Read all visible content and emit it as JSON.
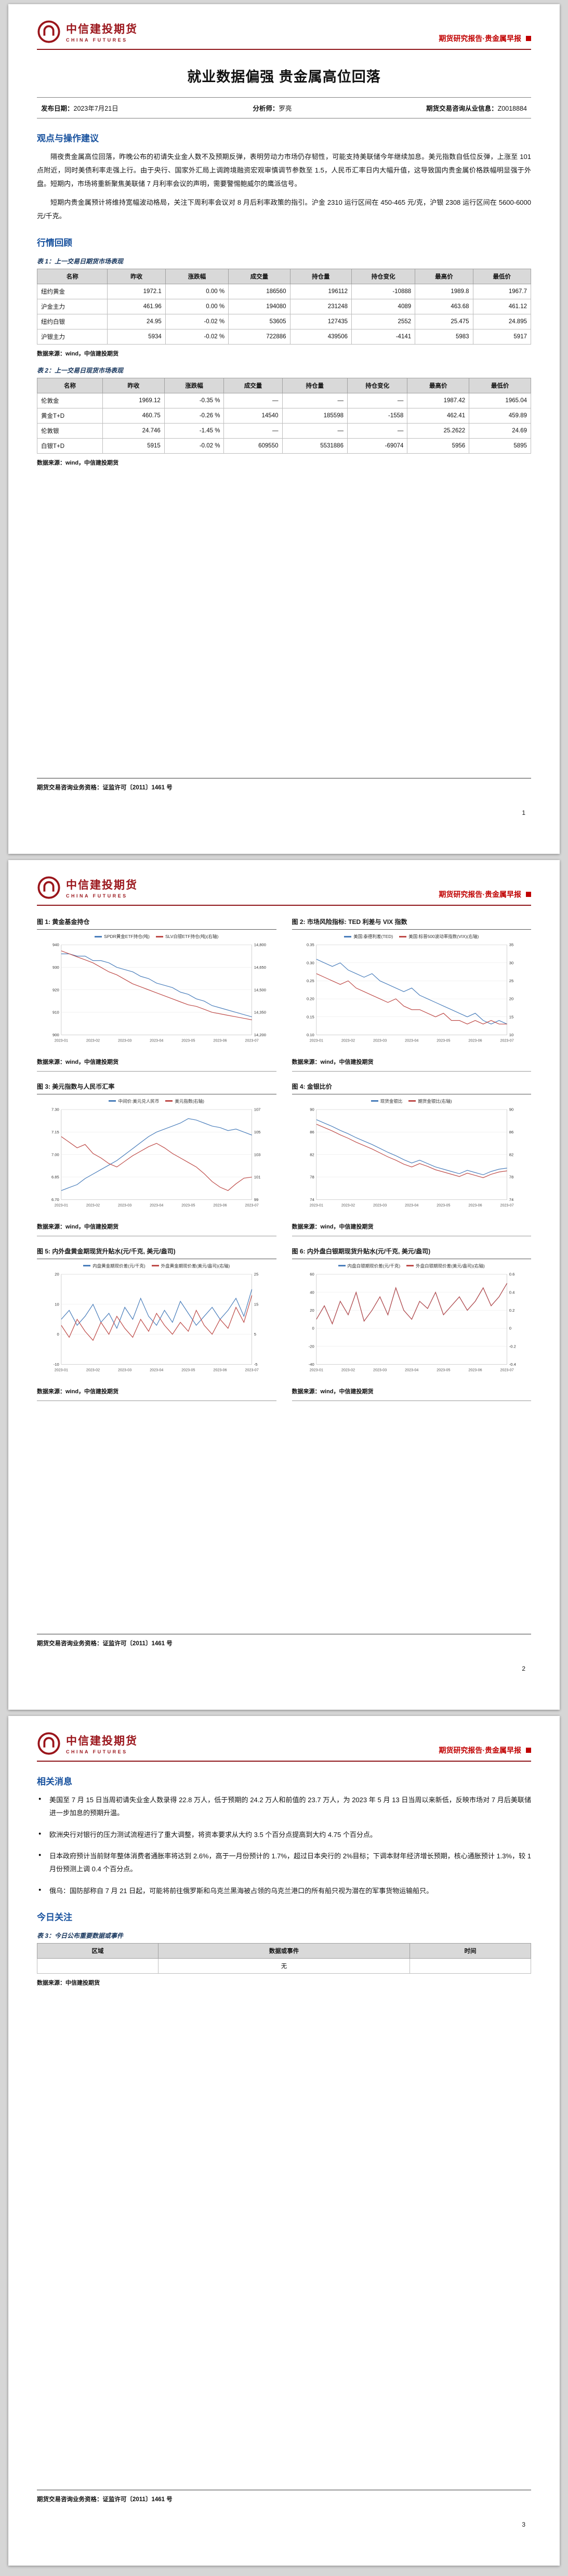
{
  "colors": {
    "brand_red": "#9a151b",
    "report_type_red": "#c00000",
    "heading_blue": "#17519e",
    "caption_navy": "#17365d",
    "table_header_bg": "#d9d9d9",
    "series_blue": "#4a7ebb",
    "series_red": "#be4b48"
  },
  "header": {
    "logo_cn": "中信建投期货",
    "logo_en": "CHINA FUTURES",
    "report_type": "期货研究报告·贵金属早报"
  },
  "footer": {
    "license": "期货交易咨询业务资格：证监许可〔2011〕1461 号"
  },
  "page1": {
    "page_no": "1",
    "title": "就业数据偏强 贵金属高位回落",
    "meta": {
      "publish_label": "发布日期：",
      "publish_date": "2023年7月21日",
      "analyst_label": "分析师：",
      "analyst": "罗亮",
      "license_label": "期货交易咨询从业信息：",
      "license_no": "Z0018884"
    },
    "section1_title": "观点与操作建议",
    "para1": "隔夜贵金属高位回落，昨晚公布的初请失业金人数不及预期反弹，表明劳动力市场仍存韧性，可能支持美联储今年继续加息。美元指数自低位反弹，上涨至 101 点附近，同时美债利率走强上行。由于央行、国家外汇局上调跨境融资宏观审慎调节参数至 1.5，人民币汇率日内大幅升值，这导致国内贵金属价格跌幅明显强于外盘。短期内，市场将重新聚焦美联储 7 月利率会议的声明，需要警惕鲍威尔的鹰派信号。",
    "para2": "短期内贵金属预计将维持宽幅波动格局，关注下周利率会议对 8 月后利率政策的指引。沪金 2310 运行区间在 450-465 元/克，沪银 2308 运行区间在 5600-6000 元/千克。",
    "section2_title": "行情回顾",
    "table1": {
      "caption": "表 1：上一交易日期货市场表现",
      "headers": [
        "名称",
        "昨收",
        "涨跌幅",
        "成交量",
        "持仓量",
        "持仓变化",
        "最高价",
        "最低价"
      ],
      "rows": [
        [
          "纽约黄金",
          "1972.1",
          "0.00 %",
          "186560",
          "196112",
          "-10888",
          "1989.8",
          "1967.7"
        ],
        [
          "沪金主力",
          "461.96",
          "0.00 %",
          "194080",
          "231248",
          "4089",
          "463.68",
          "461.12"
        ],
        [
          "纽约白银",
          "24.95",
          "-0.02 %",
          "53605",
          "127435",
          "2552",
          "25.475",
          "24.895"
        ],
        [
          "沪银主力",
          "5934",
          "-0.02 %",
          "722886",
          "439506",
          "-4141",
          "5983",
          "5917"
        ]
      ],
      "source": "数据来源：wind，中信建投期货"
    },
    "table2": {
      "caption": "表 2：上一交易日现货市场表现",
      "headers": [
        "名称",
        "昨收",
        "涨跌幅",
        "成交量",
        "持仓量",
        "持仓变化",
        "最高价",
        "最低价"
      ],
      "rows": [
        [
          "伦敦金",
          "1969.12",
          "-0.35 %",
          "—",
          "—",
          "—",
          "1987.42",
          "1965.04"
        ],
        [
          "黄金T+D",
          "460.75",
          "-0.26 %",
          "14540",
          "185598",
          "-1558",
          "462.41",
          "459.89"
        ],
        [
          "伦敦银",
          "24.746",
          "-1.45 %",
          "—",
          "—",
          "—",
          "25.2622",
          "24.69"
        ],
        [
          "白银T+D",
          "5915",
          "-0.02 %",
          "609550",
          "5531886",
          "-69074",
          "5956",
          "5895"
        ]
      ],
      "source": "数据来源：wind，中信建投期货"
    }
  },
  "page2": {
    "page_no": "2",
    "charts": [
      {
        "type": "line",
        "title": "图 1: 黄金基金持仓",
        "legend": [
          {
            "label": "SPDR黄金ETF持仓(吨)",
            "color": "#4a7ebb"
          },
          {
            "label": "SLV白银ETF持仓(吨)(右轴)",
            "color": "#be4b48"
          }
        ],
        "left_axis": {
          "min": 900,
          "max": 940,
          "ticks": [
            "900",
            "910",
            "920",
            "930",
            "940"
          ]
        },
        "right_axis": {
          "min": 14200,
          "max": 14800,
          "ticks": [
            "14,200",
            "14,350",
            "14,500",
            "14,650",
            "14,800"
          ]
        },
        "x_labels": [
          "2023-01",
          "2023-02",
          "2023-03",
          "2023-04",
          "2023-05",
          "2023-06",
          "2023-07"
        ],
        "series": [
          {
            "name": "SPDR黄金ETF持仓(吨)",
            "axis": "left",
            "color": "#4a7ebb",
            "values": [
              936,
              936,
              935,
              935,
              933,
              933,
              932,
              930,
              929,
              928,
              926,
              925,
              923,
              922,
              921,
              919,
              918,
              916,
              915,
              913,
              912,
              911,
              910,
              909,
              908
            ]
          },
          {
            "name": "SLV白银ETF持仓(吨)",
            "axis": "right",
            "color": "#be4b48",
            "values": [
              14760,
              14740,
              14720,
              14700,
              14680,
              14650,
              14620,
              14600,
              14570,
              14540,
              14520,
              14500,
              14480,
              14460,
              14440,
              14420,
              14400,
              14390,
              14370,
              14350,
              14340,
              14330,
              14320,
              14310,
              14300
            ]
          }
        ],
        "source": "数据来源：wind，中信建投期货"
      },
      {
        "type": "line",
        "title": "图 2: 市场风险指标: TED 利差与 VIX 指数",
        "legend": [
          {
            "label": "美国:泰德利差(TED)",
            "color": "#4a7ebb"
          },
          {
            "label": "美国:标普500波动率指数(VIX)(右轴)",
            "color": "#be4b48"
          }
        ],
        "left_axis": {
          "min": 0.1,
          "max": 0.35,
          "ticks": [
            "0.10",
            "0.15",
            "0.20",
            "0.25",
            "0.30",
            "0.35"
          ]
        },
        "right_axis": {
          "min": 10,
          "max": 35,
          "ticks": [
            "10",
            "15",
            "20",
            "25",
            "30",
            "35"
          ]
        },
        "x_labels": [
          "2023-01",
          "2023-02",
          "2023-03",
          "2023-04",
          "2023-05",
          "2023-06",
          "2023-07"
        ],
        "series": [
          {
            "name": "美国:泰德利差(TED)",
            "axis": "left",
            "color": "#4a7ebb",
            "values": [
              0.31,
              0.3,
              0.29,
              0.3,
              0.28,
              0.27,
              0.26,
              0.27,
              0.25,
              0.24,
              0.23,
              0.22,
              0.23,
              0.21,
              0.2,
              0.19,
              0.18,
              0.17,
              0.16,
              0.15,
              0.16,
              0.14,
              0.13,
              0.14,
              0.13
            ]
          },
          {
            "name": "美国:标普500波动率指数(VIX)",
            "axis": "right",
            "color": "#be4b48",
            "values": [
              27,
              26,
              25,
              24,
              25,
              23,
              22,
              21,
              20,
              19,
              20,
              18,
              17,
              17,
              16,
              15,
              16,
              14,
              14,
              13,
              14,
              13,
              14,
              13,
              13
            ]
          }
        ],
        "source": "数据来源：wind，中信建投期货"
      },
      {
        "type": "line",
        "title": "图 3: 美元指数与人民币汇率",
        "legend": [
          {
            "label": "中间价:美元兑人民币",
            "color": "#4a7ebb"
          },
          {
            "label": "美元指数(右轴)",
            "color": "#be4b48"
          }
        ],
        "left_axis": {
          "min": 6.7,
          "max": 7.3,
          "ticks": [
            "6.70",
            "6.85",
            "7.00",
            "7.15",
            "7.30"
          ]
        },
        "right_axis": {
          "min": 99,
          "max": 107,
          "ticks": [
            "99",
            "101",
            "103",
            "105",
            "107"
          ]
        },
        "x_labels": [
          "2023-01",
          "2023-02",
          "2023-03",
          "2023-04",
          "2023-05",
          "2023-06",
          "2023-07"
        ],
        "series": [
          {
            "name": "中间价:美元兑人民币",
            "axis": "left",
            "color": "#4a7ebb",
            "values": [
              6.76,
              6.78,
              6.8,
              6.84,
              6.87,
              6.9,
              6.93,
              6.96,
              7.0,
              7.04,
              7.08,
              7.12,
              7.15,
              7.17,
              7.19,
              7.21,
              7.24,
              7.23,
              7.21,
              7.19,
              7.18,
              7.16,
              7.17,
              7.15,
              7.13
            ]
          },
          {
            "name": "美元指数",
            "axis": "right",
            "color": "#be4b48",
            "values": [
              104.6,
              104.1,
              103.6,
              103.9,
              103.1,
              102.7,
              102.2,
              101.9,
              102.4,
              102.9,
              103.3,
              103.7,
              104.0,
              103.6,
              103.1,
              102.7,
              102.3,
              101.9,
              101.3,
              100.6,
              100.1,
              99.8,
              100.4,
              100.9,
              101.0
            ]
          }
        ],
        "source": "数据来源：wind，中信建投期货"
      },
      {
        "type": "line",
        "title": "图 4: 金银比价",
        "legend": [
          {
            "label": "现货金银比",
            "color": "#4a7ebb"
          },
          {
            "label": "期货金银比(右轴)",
            "color": "#be4b48"
          }
        ],
        "left_axis": {
          "min": 74,
          "max": 90,
          "ticks": [
            "74",
            "78",
            "82",
            "86",
            "90"
          ]
        },
        "right_axis": {
          "min": 74,
          "max": 90,
          "ticks": [
            "74",
            "78",
            "82",
            "86",
            "90"
          ]
        },
        "x_labels": [
          "2023-01",
          "2023-02",
          "2023-03",
          "2023-04",
          "2023-05",
          "2023-06",
          "2023-07"
        ],
        "series": [
          {
            "name": "现货金银比",
            "axis": "left",
            "color": "#4a7ebb",
            "values": [
              88.2,
              87.6,
              87.0,
              86.3,
              85.7,
              85.0,
              84.4,
              83.8,
              83.1,
              82.4,
              81.8,
              81.1,
              80.5,
              81.0,
              80.4,
              79.8,
              79.4,
              79.0,
              78.6,
              79.2,
              78.8,
              78.4,
              79.0,
              79.4,
              79.6
            ]
          },
          {
            "name": "期货金银比",
            "axis": "right",
            "color": "#be4b48",
            "values": [
              87.4,
              86.8,
              86.2,
              85.5,
              84.9,
              84.2,
              83.6,
              83.0,
              82.3,
              81.6,
              81.0,
              80.3,
              79.8,
              80.4,
              79.9,
              79.3,
              78.9,
              78.5,
              78.1,
              78.7,
              78.3,
              77.9,
              78.5,
              78.9,
              79.1
            ]
          }
        ],
        "source": "数据来源：wind，中信建投期货"
      },
      {
        "type": "line",
        "title": "图 5: 内外盘黄金期现货升贴水(元/千克, 美元/盎司)",
        "legend": [
          {
            "label": "内盘黄金期现价差(元/千克)",
            "color": "#4a7ebb"
          },
          {
            "label": "外盘黄金期现价差(美元/盎司)(右轴)",
            "color": "#be4b48"
          }
        ],
        "left_axis": {
          "min": -10,
          "max": 20,
          "ticks": [
            "-10",
            "0",
            "10",
            "20"
          ]
        },
        "right_axis": {
          "min": -5,
          "max": 25,
          "ticks": [
            "-5",
            "5",
            "15",
            "25"
          ]
        },
        "x_labels": [
          "2023-01",
          "2023-02",
          "2023-03",
          "2023-04",
          "2023-05",
          "2023-06",
          "2023-07"
        ],
        "series": [
          {
            "name": "内盘黄金期现价差",
            "axis": "left",
            "color": "#4a7ebb",
            "values": [
              5,
              8,
              3,
              6,
              10,
              4,
              7,
              2,
              9,
              5,
              12,
              6,
              3,
              8,
              4,
              11,
              7,
              3,
              6,
              9,
              5,
              8,
              12,
              6,
              15
            ]
          },
          {
            "name": "外盘黄金期现价差",
            "axis": "right",
            "color": "#be4b48",
            "values": [
              8,
              4,
              10,
              6,
              3,
              9,
              5,
              11,
              7,
              4,
              10,
              6,
              12,
              8,
              5,
              9,
              6,
              13,
              8,
              5,
              10,
              7,
              14,
              9,
              18
            ]
          }
        ],
        "source": "数据来源：wind，中信建投期货"
      },
      {
        "type": "line",
        "title": "图 6: 内外盘白银期现货升贴水(元/千克, 美元/盎司)",
        "legend": [
          {
            "label": "内盘白银期现价差(元/千克)",
            "color": "#4a7ebb"
          },
          {
            "label": "外盘白银期现价差(美元/盎司)(右轴)",
            "color": "#be4b48"
          }
        ],
        "left_axis": {
          "min": -40,
          "max": 60,
          "ticks": [
            "-40",
            "-20",
            "0",
            "20",
            "40",
            "60"
          ]
        },
        "right_axis": {
          "min": -0.4,
          "max": 0.6,
          "ticks": [
            "-0.4",
            "-0.2",
            "0",
            "0.2",
            "0.4",
            "0.6"
          ]
        },
        "x_labels": [
          "2023-01",
          "2023-02",
          "2023-03",
          "2023-04",
          "2023-05",
          "2023-06",
          "2023-07"
        ],
        "series": [
          {
            "name": "内盘白银期现价差",
            "axis": "left",
            "color": "#4a7ebb",
            "values": [
              10,
              25,
              5,
              30,
              15,
              40,
              8,
              20,
              35,
              15,
              45,
              20,
              10,
              30,
              22,
              40,
              15,
              25,
              35,
              20,
              30,
              45,
              25,
              35,
              50
            ]
          },
          {
            "name": "外盘白银期现价差",
            "axis": "right",
            "color": "#be4b48",
            "values": [
              0.1,
              0.25,
              0.05,
              0.3,
              0.15,
              0.4,
              0.08,
              0.2,
              0.35,
              0.15,
              0.45,
              0.2,
              0.1,
              0.3,
              0.22,
              0.4,
              0.15,
              0.25,
              0.35,
              0.2,
              0.3,
              0.45,
              0.25,
              0.35,
              0.5
            ]
          }
        ],
        "source": "数据来源：wind，中信建投期货"
      }
    ]
  },
  "page3": {
    "page_no": "3",
    "section_news_title": "相关消息",
    "news": [
      "美国至 7 月 15 日当周初请失业金人数录得 22.8 万人，低于预期的 24.2 万人和前值的 23.7 万人，为 2023 年 5 月 13 日当周以来新低，反映市场对 7 月后美联储进一步加息的预期升温。",
      "欧洲央行对银行的压力测试流程进行了重大调整，将资本要求从大约 3.5 个百分点提高到大约 4.75 个百分点。",
      "日本政府预计当前财年整体消费者通胀率将达到 2.6%，高于一月份预计的 1.7%，超过日本央行的 2%目标；下调本财年经济增长预期，核心通胀预计 1.3%，较 1 月份预测上调 0.4 个百分点。",
      "俄乌：国防部称自 7 月 21 日起，可能将前往俄罗斯和乌克兰黑海被占领的乌克兰港口的所有船只视为潜在的军事货物运输船只。"
    ],
    "section_focus_title": "今日关注",
    "table3": {
      "caption": "表 3：今日公布重要数据或事件",
      "headers": [
        "区域",
        "数据或事件",
        "时间"
      ],
      "rows": [
        [
          "",
          "无",
          ""
        ]
      ],
      "source": "数据来源：中信建投期货"
    }
  }
}
